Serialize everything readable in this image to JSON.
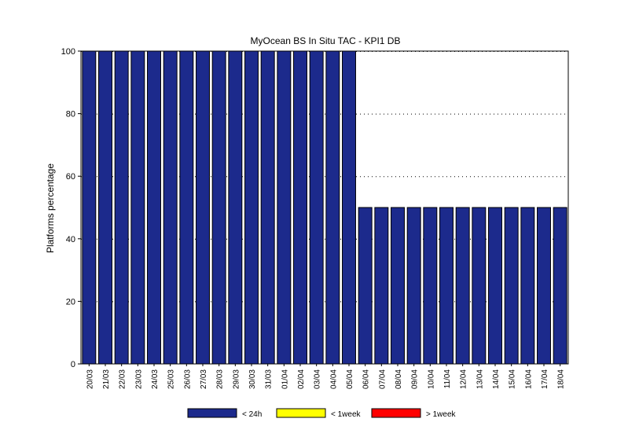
{
  "chart_data": {
    "type": "bar",
    "title": "MyOcean  BS In Situ TAC - KPI1  DB",
    "xlabel": "",
    "ylabel": "Platforms percentage",
    "ylim": [
      0,
      100
    ],
    "yticks": [
      0,
      20,
      40,
      60,
      80,
      100
    ],
    "grid": "horizontal dotted",
    "legend_position": "bottom",
    "categories": [
      "20/03",
      "21/03",
      "22/03",
      "23/03",
      "24/03",
      "25/03",
      "26/03",
      "27/03",
      "28/03",
      "29/03",
      "30/03",
      "31/03",
      "01/04",
      "02/04",
      "03/04",
      "04/04",
      "05/04",
      "06/04",
      "07/04",
      "08/04",
      "09/04",
      "10/04",
      "11/04",
      "12/04",
      "13/04",
      "14/04",
      "15/04",
      "16/04",
      "17/04",
      "18/04"
    ],
    "series": [
      {
        "name": "< 24h",
        "color": "#1c2a8c",
        "values": [
          100,
          100,
          100,
          100,
          100,
          100,
          100,
          100,
          100,
          100,
          100,
          100,
          100,
          100,
          100,
          100,
          100,
          50,
          50,
          50,
          50,
          50,
          50,
          50,
          50,
          50,
          50,
          50,
          50,
          50
        ]
      },
      {
        "name": "< 1week",
        "color": "#ffff00",
        "values": [
          0,
          0,
          0,
          0,
          0,
          0,
          0,
          0,
          0,
          0,
          0,
          0,
          0,
          0,
          0,
          0,
          0,
          0,
          0,
          0,
          0,
          0,
          0,
          0,
          0,
          0,
          0,
          0,
          0,
          0
        ]
      },
      {
        "name": "> 1week",
        "color": "#ff0000",
        "values": [
          0,
          0,
          0,
          0,
          0,
          0,
          0,
          0,
          0,
          0,
          0,
          0,
          0,
          0,
          0,
          0,
          0,
          0,
          0,
          0,
          0,
          0,
          0,
          0,
          0,
          0,
          0,
          0,
          0,
          0
        ]
      }
    ]
  }
}
